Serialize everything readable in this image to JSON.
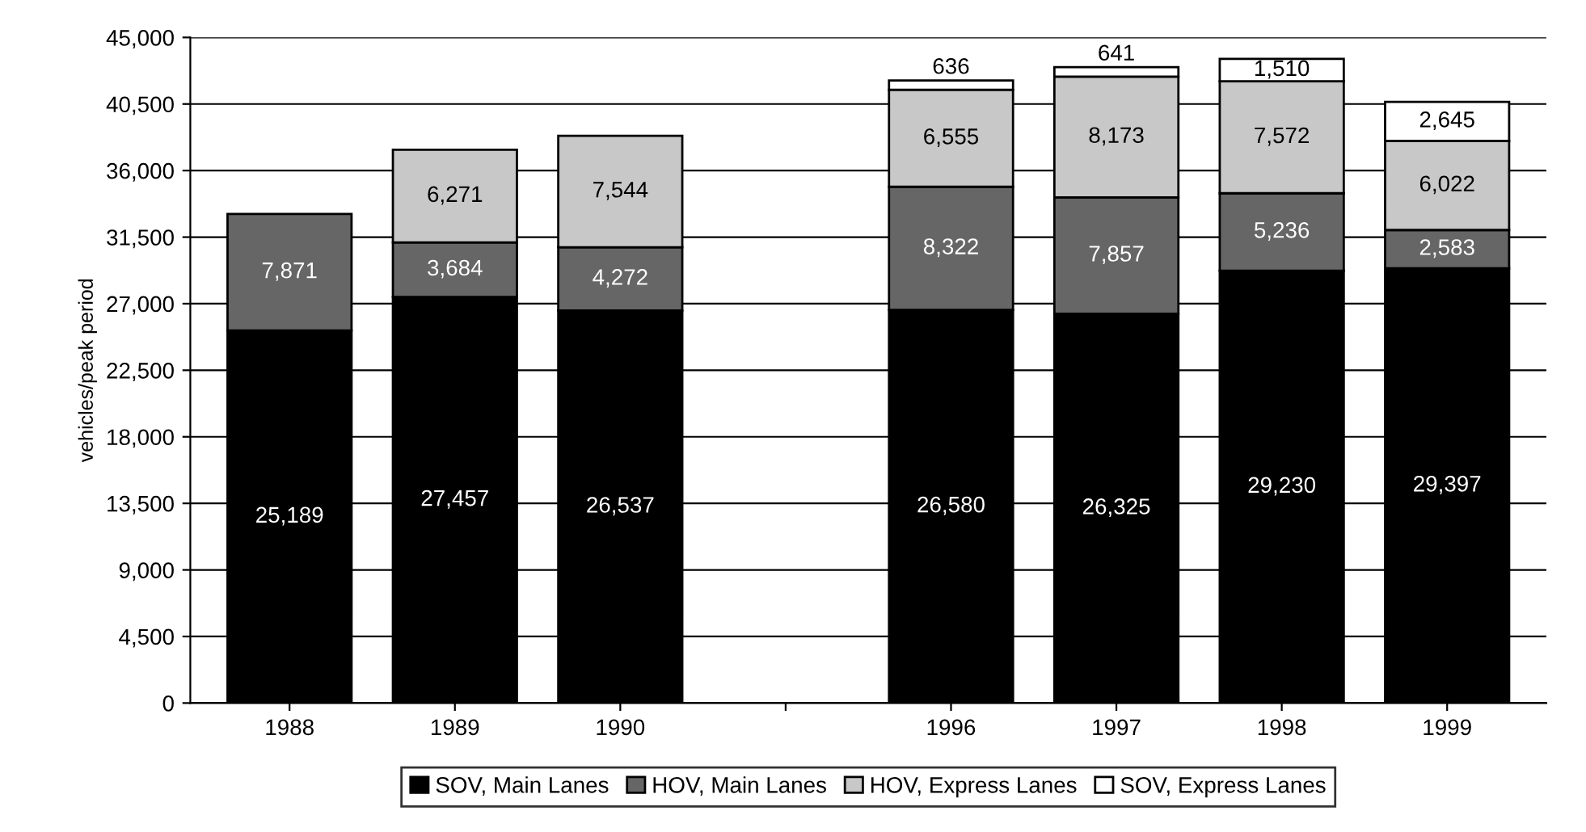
{
  "chart_data": {
    "type": "bar",
    "stacked": true,
    "ylabel": "vehicles/peak period",
    "categories": [
      "1988",
      "1989",
      "1990",
      null,
      "1996",
      "1997",
      "1998",
      "1999"
    ],
    "series": [
      {
        "name": "SOV, Main Lanes",
        "color": "#000000",
        "values": [
          25189,
          27457,
          26537,
          null,
          26580,
          26325,
          29230,
          29397
        ],
        "value_labels": [
          "25,189",
          "27,457",
          "26,537",
          null,
          "26,580",
          "26,325",
          "29,230",
          "29,397"
        ]
      },
      {
        "name": "HOV, Main Lanes",
        "color": "#666666",
        "values": [
          7871,
          3684,
          4272,
          null,
          8322,
          7857,
          5236,
          2583
        ],
        "value_labels": [
          "7,871",
          "3,684",
          "4,272",
          null,
          "8,322",
          "7,857",
          "5,236",
          "2,583"
        ]
      },
      {
        "name": "HOV, Express Lanes",
        "color": "#c8c8c8",
        "values": [
          null,
          6271,
          7544,
          null,
          6555,
          8173,
          7572,
          6022
        ],
        "value_labels": [
          null,
          "6,271",
          "7,544",
          null,
          "6,555",
          "8,173",
          "7,572",
          "6,022"
        ]
      },
      {
        "name": "SOV, Express Lanes",
        "color": "#ffffff",
        "values": [
          null,
          null,
          null,
          null,
          636,
          641,
          1510,
          2645
        ],
        "value_labels": [
          null,
          null,
          null,
          null,
          "636",
          "641",
          "1,510",
          "2,645"
        ]
      }
    ],
    "ylim": [
      0,
      45000
    ],
    "yticks": [
      {
        "value": 0,
        "label": "0"
      },
      {
        "value": 4500,
        "label": "4,500"
      },
      {
        "value": 9000,
        "label": "9,000"
      },
      {
        "value": 13500,
        "label": "13,500"
      },
      {
        "value": 18000,
        "label": "18,000"
      },
      {
        "value": 22500,
        "label": "22,500"
      },
      {
        "value": 27000,
        "label": "27,000"
      },
      {
        "value": 31500,
        "label": "31,500"
      },
      {
        "value": 36000,
        "label": "36,000"
      },
      {
        "value": 40500,
        "label": "40,500"
      },
      {
        "value": 45000,
        "label": "45,000"
      }
    ],
    "grid": "y",
    "legend": "bottom"
  }
}
